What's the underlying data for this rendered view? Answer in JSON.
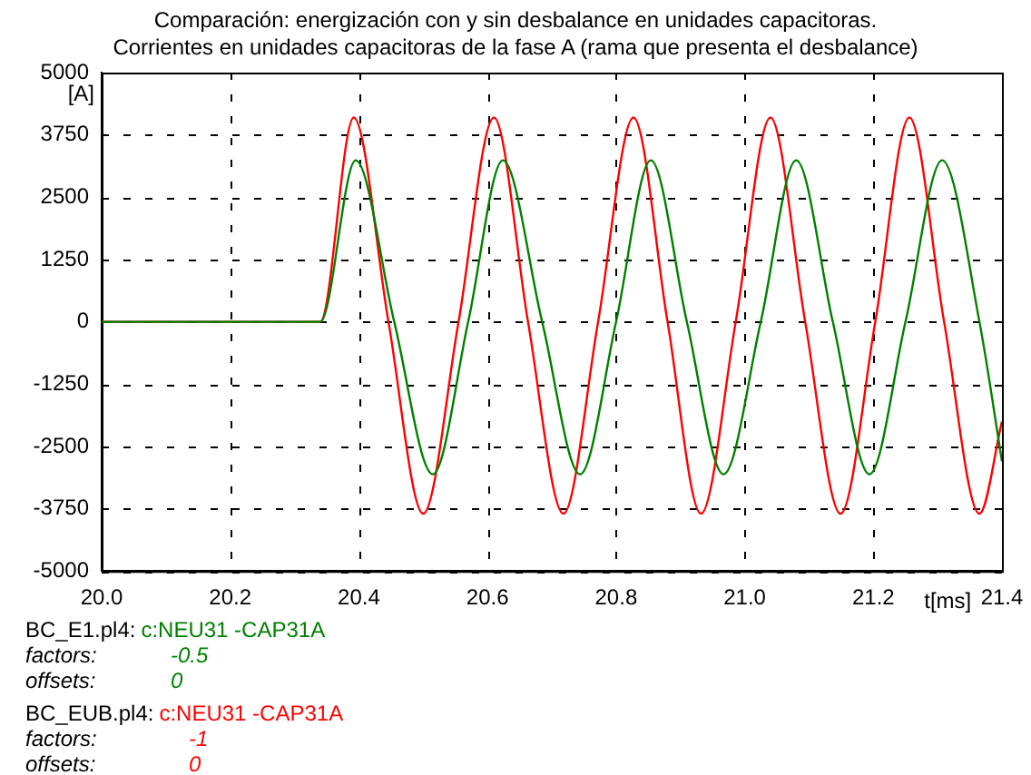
{
  "chart_data": {
    "type": "line",
    "title": "Comparación: energización con y sin desbalance en unidades capacitoras.",
    "subtitle": "Corrientes en unidades capacitoras de la fase A (rama que presenta el desbalance)",
    "xlabel": "t[ms]",
    "ylabel": "[A]",
    "xlim": [
      20.0,
      21.4
    ],
    "xticks": [
      {
        "value": 20.0,
        "label": "20.0"
      },
      20.2,
      20.4,
      20.6,
      20.8,
      {
        "value": 21.0,
        "label": "21.0"
      },
      21.2,
      21.4
    ],
    "ylim": [
      -5000,
      5000
    ],
    "yticks": [
      -5000,
      -3750,
      -2500,
      -1250,
      0,
      1250,
      2500,
      3750,
      5000
    ],
    "grid": true,
    "legend": false,
    "marker": "none",
    "line_style": "solid",
    "series": [
      {
        "name": "c:NEU31 -CAP31A",
        "color": "#008000",
        "x": [
          20.0,
          20.34,
          20.395,
          20.455,
          20.515,
          20.57,
          20.624,
          20.685,
          20.744,
          20.8,
          20.854,
          20.91,
          20.967,
          21.025,
          21.08,
          21.137,
          21.194,
          21.25,
          21.307,
          21.365,
          21.4
        ],
        "values": [
          0,
          0,
          3240,
          0,
          -3060,
          0,
          3240,
          0,
          -3060,
          0,
          3240,
          0,
          -3060,
          0,
          3240,
          0,
          -3060,
          0,
          3240,
          0,
          -2800
        ]
      },
      {
        "name": "c:NEU31 -CAP31A",
        "color": "#ff0000",
        "x": [
          20.0,
          20.34,
          20.392,
          20.446,
          20.5,
          20.555,
          20.61,
          20.663,
          20.718,
          20.772,
          20.827,
          20.88,
          20.932,
          20.986,
          21.04,
          21.094,
          21.149,
          21.203,
          21.256,
          21.31,
          21.365,
          21.4
        ],
        "values": [
          0,
          0,
          4100,
          0,
          -3850,
          0,
          4100,
          0,
          -3850,
          0,
          4100,
          0,
          -3850,
          0,
          4100,
          0,
          -3850,
          0,
          4100,
          0,
          -3850,
          -2000
        ]
      }
    ],
    "annotations": [
      "BC_E1.pl4:",
      "factors:",
      "-0.5",
      "offsets:",
      "0",
      "BC_EUB.pl4:",
      "factors:",
      "-1",
      "offsets:",
      "0"
    ]
  }
}
